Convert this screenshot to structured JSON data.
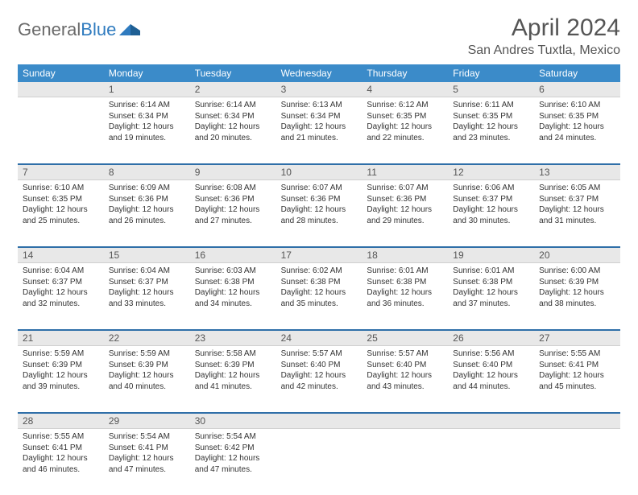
{
  "brand": {
    "part1": "General",
    "part2": "Blue"
  },
  "title": "April 2024",
  "location": "San Andres Tuxtla, Mexico",
  "colors": {
    "header_bg": "#3b8bc9",
    "header_text": "#ffffff",
    "daynum_bg": "#e8e8e8",
    "sep": "#2f6fa8",
    "text": "#333333",
    "title_text": "#555555"
  },
  "day_names": [
    "Sunday",
    "Monday",
    "Tuesday",
    "Wednesday",
    "Thursday",
    "Friday",
    "Saturday"
  ],
  "weeks": [
    [
      {
        "n": "",
        "sunrise": "",
        "sunset": "",
        "daylight": ""
      },
      {
        "n": "1",
        "sunrise": "Sunrise: 6:14 AM",
        "sunset": "Sunset: 6:34 PM",
        "daylight": "Daylight: 12 hours and 19 minutes."
      },
      {
        "n": "2",
        "sunrise": "Sunrise: 6:14 AM",
        "sunset": "Sunset: 6:34 PM",
        "daylight": "Daylight: 12 hours and 20 minutes."
      },
      {
        "n": "3",
        "sunrise": "Sunrise: 6:13 AM",
        "sunset": "Sunset: 6:34 PM",
        "daylight": "Daylight: 12 hours and 21 minutes."
      },
      {
        "n": "4",
        "sunrise": "Sunrise: 6:12 AM",
        "sunset": "Sunset: 6:35 PM",
        "daylight": "Daylight: 12 hours and 22 minutes."
      },
      {
        "n": "5",
        "sunrise": "Sunrise: 6:11 AM",
        "sunset": "Sunset: 6:35 PM",
        "daylight": "Daylight: 12 hours and 23 minutes."
      },
      {
        "n": "6",
        "sunrise": "Sunrise: 6:10 AM",
        "sunset": "Sunset: 6:35 PM",
        "daylight": "Daylight: 12 hours and 24 minutes."
      }
    ],
    [
      {
        "n": "7",
        "sunrise": "Sunrise: 6:10 AM",
        "sunset": "Sunset: 6:35 PM",
        "daylight": "Daylight: 12 hours and 25 minutes."
      },
      {
        "n": "8",
        "sunrise": "Sunrise: 6:09 AM",
        "sunset": "Sunset: 6:36 PM",
        "daylight": "Daylight: 12 hours and 26 minutes."
      },
      {
        "n": "9",
        "sunrise": "Sunrise: 6:08 AM",
        "sunset": "Sunset: 6:36 PM",
        "daylight": "Daylight: 12 hours and 27 minutes."
      },
      {
        "n": "10",
        "sunrise": "Sunrise: 6:07 AM",
        "sunset": "Sunset: 6:36 PM",
        "daylight": "Daylight: 12 hours and 28 minutes."
      },
      {
        "n": "11",
        "sunrise": "Sunrise: 6:07 AM",
        "sunset": "Sunset: 6:36 PM",
        "daylight": "Daylight: 12 hours and 29 minutes."
      },
      {
        "n": "12",
        "sunrise": "Sunrise: 6:06 AM",
        "sunset": "Sunset: 6:37 PM",
        "daylight": "Daylight: 12 hours and 30 minutes."
      },
      {
        "n": "13",
        "sunrise": "Sunrise: 6:05 AM",
        "sunset": "Sunset: 6:37 PM",
        "daylight": "Daylight: 12 hours and 31 minutes."
      }
    ],
    [
      {
        "n": "14",
        "sunrise": "Sunrise: 6:04 AM",
        "sunset": "Sunset: 6:37 PM",
        "daylight": "Daylight: 12 hours and 32 minutes."
      },
      {
        "n": "15",
        "sunrise": "Sunrise: 6:04 AM",
        "sunset": "Sunset: 6:37 PM",
        "daylight": "Daylight: 12 hours and 33 minutes."
      },
      {
        "n": "16",
        "sunrise": "Sunrise: 6:03 AM",
        "sunset": "Sunset: 6:38 PM",
        "daylight": "Daylight: 12 hours and 34 minutes."
      },
      {
        "n": "17",
        "sunrise": "Sunrise: 6:02 AM",
        "sunset": "Sunset: 6:38 PM",
        "daylight": "Daylight: 12 hours and 35 minutes."
      },
      {
        "n": "18",
        "sunrise": "Sunrise: 6:01 AM",
        "sunset": "Sunset: 6:38 PM",
        "daylight": "Daylight: 12 hours and 36 minutes."
      },
      {
        "n": "19",
        "sunrise": "Sunrise: 6:01 AM",
        "sunset": "Sunset: 6:38 PM",
        "daylight": "Daylight: 12 hours and 37 minutes."
      },
      {
        "n": "20",
        "sunrise": "Sunrise: 6:00 AM",
        "sunset": "Sunset: 6:39 PM",
        "daylight": "Daylight: 12 hours and 38 minutes."
      }
    ],
    [
      {
        "n": "21",
        "sunrise": "Sunrise: 5:59 AM",
        "sunset": "Sunset: 6:39 PM",
        "daylight": "Daylight: 12 hours and 39 minutes."
      },
      {
        "n": "22",
        "sunrise": "Sunrise: 5:59 AM",
        "sunset": "Sunset: 6:39 PM",
        "daylight": "Daylight: 12 hours and 40 minutes."
      },
      {
        "n": "23",
        "sunrise": "Sunrise: 5:58 AM",
        "sunset": "Sunset: 6:39 PM",
        "daylight": "Daylight: 12 hours and 41 minutes."
      },
      {
        "n": "24",
        "sunrise": "Sunrise: 5:57 AM",
        "sunset": "Sunset: 6:40 PM",
        "daylight": "Daylight: 12 hours and 42 minutes."
      },
      {
        "n": "25",
        "sunrise": "Sunrise: 5:57 AM",
        "sunset": "Sunset: 6:40 PM",
        "daylight": "Daylight: 12 hours and 43 minutes."
      },
      {
        "n": "26",
        "sunrise": "Sunrise: 5:56 AM",
        "sunset": "Sunset: 6:40 PM",
        "daylight": "Daylight: 12 hours and 44 minutes."
      },
      {
        "n": "27",
        "sunrise": "Sunrise: 5:55 AM",
        "sunset": "Sunset: 6:41 PM",
        "daylight": "Daylight: 12 hours and 45 minutes."
      }
    ],
    [
      {
        "n": "28",
        "sunrise": "Sunrise: 5:55 AM",
        "sunset": "Sunset: 6:41 PM",
        "daylight": "Daylight: 12 hours and 46 minutes."
      },
      {
        "n": "29",
        "sunrise": "Sunrise: 5:54 AM",
        "sunset": "Sunset: 6:41 PM",
        "daylight": "Daylight: 12 hours and 47 minutes."
      },
      {
        "n": "30",
        "sunrise": "Sunrise: 5:54 AM",
        "sunset": "Sunset: 6:42 PM",
        "daylight": "Daylight: 12 hours and 47 minutes."
      },
      {
        "n": "",
        "sunrise": "",
        "sunset": "",
        "daylight": ""
      },
      {
        "n": "",
        "sunrise": "",
        "sunset": "",
        "daylight": ""
      },
      {
        "n": "",
        "sunrise": "",
        "sunset": "",
        "daylight": ""
      },
      {
        "n": "",
        "sunrise": "",
        "sunset": "",
        "daylight": ""
      }
    ]
  ]
}
